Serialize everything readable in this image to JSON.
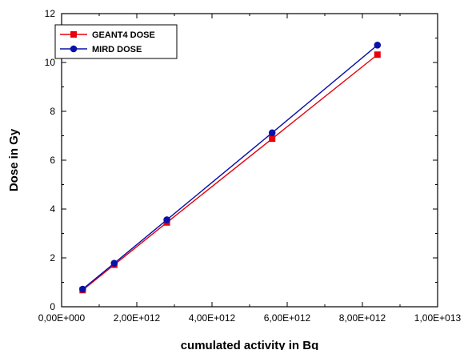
{
  "chart_data": {
    "type": "line",
    "xlabel": "cumulated activity in Bq",
    "ylabel": "Dose in Gy",
    "xlim": [
      0,
      10000000000000.0
    ],
    "ylim": [
      0,
      12
    ],
    "x_ticks": [
      0,
      2000000000000.0,
      4000000000000.0,
      6000000000000.0,
      8000000000000.0,
      10000000000000.0
    ],
    "x_tick_labels": [
      "0,00E+000",
      "2,00E+012",
      "4,00E+012",
      "6,00E+012",
      "8,00E+012",
      "1,00E+013"
    ],
    "y_ticks": [
      0,
      2,
      4,
      6,
      8,
      10,
      12
    ],
    "y_tick_labels": [
      "0",
      "2",
      "4",
      "6",
      "8",
      "10",
      "12"
    ],
    "grid": false,
    "legend_position": "top-left",
    "series": [
      {
        "name": "GEANT4 DOSE",
        "color": "#e8000b",
        "marker": "square",
        "x": [
          560000000000.0,
          1400000000000.0,
          2800000000000.0,
          5600000000000.0,
          8400000000000.0
        ],
        "y": [
          0.68,
          1.72,
          3.45,
          6.88,
          10.32
        ]
      },
      {
        "name": "MIRD DOSE",
        "color": "#0a10a8",
        "marker": "circle",
        "x": [
          560000000000.0,
          1400000000000.0,
          2800000000000.0,
          5600000000000.0,
          8400000000000.0
        ],
        "y": [
          0.72,
          1.78,
          3.56,
          7.12,
          10.71
        ]
      }
    ]
  }
}
